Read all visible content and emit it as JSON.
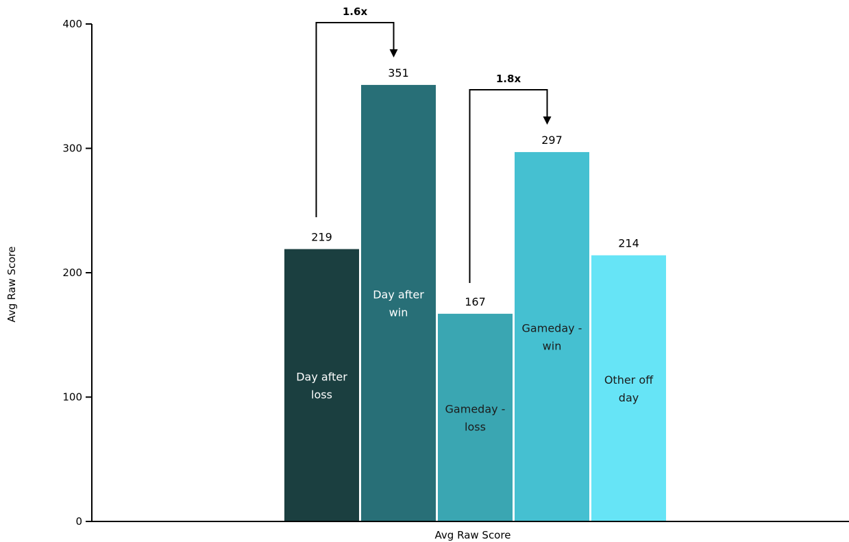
{
  "chart_data": {
    "type": "bar",
    "xlabel": "Avg Raw Score",
    "ylabel": "Avg Raw Score",
    "ylim": [
      0,
      400
    ],
    "yticks": [
      0,
      100,
      200,
      300,
      400
    ],
    "grid": false,
    "categories": [
      "Day after loss",
      "Day after win",
      "Gameday - loss",
      "Gameday - win",
      "Other off day"
    ],
    "category_lines": [
      [
        "Day after",
        "loss"
      ],
      [
        "Day after",
        "win"
      ],
      [
        "Gameday -",
        "loss"
      ],
      [
        "Gameday -",
        "win"
      ],
      [
        "Other off",
        "day"
      ]
    ],
    "values": [
      219,
      351,
      167,
      297,
      214
    ],
    "value_labels": [
      "219",
      "351",
      "167",
      "297",
      "214"
    ],
    "colors": [
      "#1b3f40",
      "#286f77",
      "#3aa6b2",
      "#45c0d1",
      "#66e4f6"
    ],
    "label_colors": [
      "#ffffff",
      "#ffffff",
      "#1b1b1b",
      "#1b1b1b",
      "#1b1b1b"
    ],
    "annotations": [
      {
        "label": "1.6x",
        "from": 0,
        "to": 1
      },
      {
        "label": "1.8x",
        "from": 2,
        "to": 3
      }
    ]
  }
}
